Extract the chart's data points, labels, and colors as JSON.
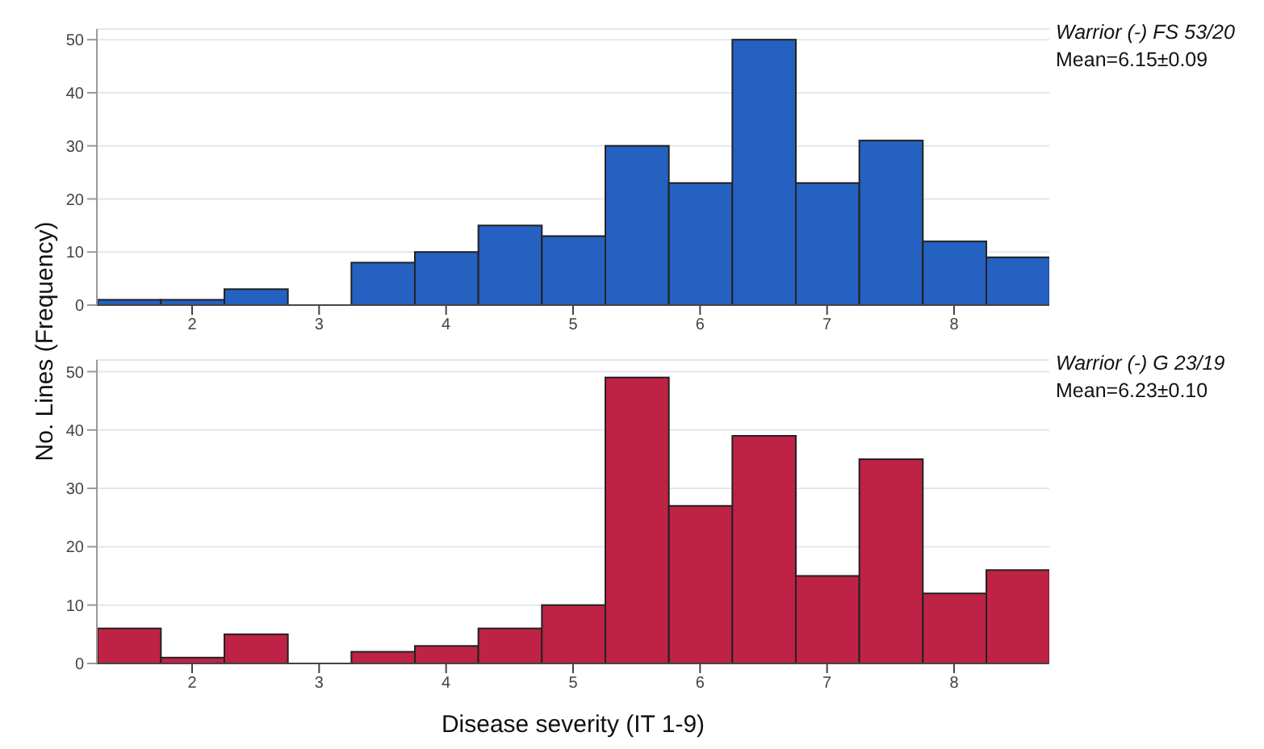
{
  "chart_data": [
    {
      "type": "histogram",
      "ylabel": "No. Lines (Frequency)",
      "annotations": [
        "Warrior (-) FS 53/20",
        "Mean=6.15±0.09"
      ],
      "bins": [
        1.25,
        1.75,
        2.25,
        2.75,
        3.25,
        3.75,
        4.25,
        4.75,
        5.25,
        5.75,
        6.25,
        6.75,
        7.25,
        7.75,
        8.25,
        8.75
      ],
      "values": [
        1,
        1,
        3,
        0,
        8,
        10,
        15,
        13,
        30,
        23,
        50,
        23,
        31,
        12,
        9
      ],
      "color": "#2461c0",
      "xlim": [
        1.25,
        8.75
      ],
      "xticks": [
        2,
        3,
        4,
        5,
        6,
        7,
        8
      ],
      "ylim": [
        0,
        52
      ],
      "yticks": [
        0,
        10,
        20,
        30,
        40,
        50
      ],
      "grid": "y"
    },
    {
      "type": "histogram",
      "xlabel": "Disease severity (IT 1-9)",
      "annotations": [
        "Warrior (-) G 23/19",
        "Mean=6.23±0.10"
      ],
      "bins": [
        1.25,
        1.75,
        2.25,
        2.75,
        3.25,
        3.75,
        4.25,
        4.75,
        5.25,
        5.75,
        6.25,
        6.75,
        7.25,
        7.75,
        8.25,
        8.75
      ],
      "values": [
        6,
        1,
        5,
        0,
        2,
        3,
        6,
        10,
        49,
        27,
        39,
        15,
        35,
        12,
        16
      ],
      "color": "#be2245",
      "xlim": [
        1.25,
        8.75
      ],
      "xticks": [
        2,
        3,
        4,
        5,
        6,
        7,
        8
      ],
      "ylim": [
        0,
        52
      ],
      "yticks": [
        0,
        10,
        20,
        30,
        40,
        50
      ],
      "grid": "y"
    }
  ]
}
